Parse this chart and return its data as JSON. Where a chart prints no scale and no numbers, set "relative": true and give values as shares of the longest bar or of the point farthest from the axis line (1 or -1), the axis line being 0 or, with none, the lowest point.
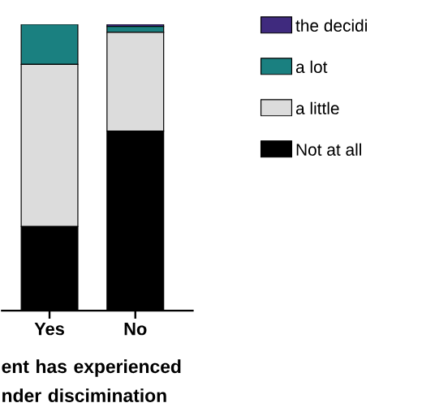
{
  "chart_data": {
    "type": "bar",
    "stacked": true,
    "relative": true,
    "xlabel": "ent has experienced nder discimination",
    "categories": [
      "Yes",
      "No"
    ],
    "legend": "right",
    "series": [
      {
        "name": "Not at all",
        "color": "#000000",
        "values": [
          0.294,
          0.627
        ]
      },
      {
        "name": "a little",
        "color": "#dcdcdc",
        "values": [
          0.566,
          0.345
        ]
      },
      {
        "name": "a lot",
        "color": "#1a8080",
        "values": [
          0.14,
          0.02
        ]
      },
      {
        "name": "the decidi",
        "color": "#3f2a7e",
        "values": [
          0,
          0.008
        ]
      }
    ]
  }
}
